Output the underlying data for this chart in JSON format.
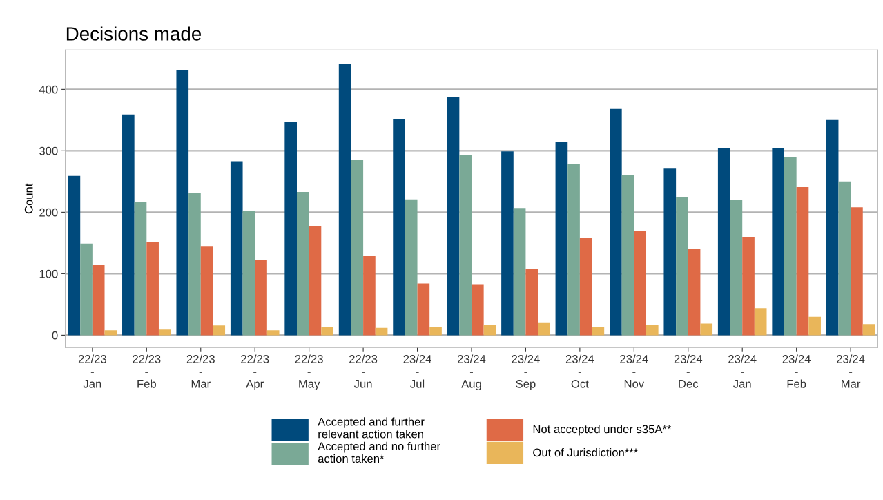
{
  "chart_data": {
    "type": "bar",
    "title": "Decisions made",
    "ylabel": "Count",
    "categories": [
      "22/23\n-\nJan",
      "22/23\n-\nFeb",
      "22/23\n-\nMar",
      "22/23\n-\nApr",
      "22/23\n-\nMay",
      "22/23\n-\nJun",
      "23/24\n-\nJul",
      "23/24\n-\nAug",
      "23/24\n-\nSep",
      "23/24\n-\nOct",
      "23/24\n-\nNov",
      "23/24\n-\nDec",
      "23/24\n-\nJan",
      "23/24\n-\nFeb",
      "23/24\n-\nMar"
    ],
    "series": [
      {
        "name": "Accepted and further\nrelevant action taken",
        "color": "#004a7c",
        "values": [
          259,
          359,
          431,
          283,
          347,
          441,
          352,
          387,
          299,
          315,
          368,
          272,
          305,
          304,
          350
        ]
      },
      {
        "name": "Accepted and no further\naction taken*",
        "color": "#7aa996",
        "values": [
          149,
          217,
          231,
          202,
          233,
          285,
          221,
          293,
          207,
          278,
          260,
          225,
          220,
          290,
          250
        ]
      },
      {
        "name": "Not accepted under s35A**",
        "color": "#df6a46",
        "values": [
          115,
          151,
          145,
          123,
          178,
          129,
          84,
          83,
          108,
          158,
          170,
          141,
          160,
          241,
          208
        ]
      },
      {
        "name": "Out of Jurisdiction***",
        "color": "#e9b65a",
        "values": [
          8,
          9,
          16,
          8,
          13,
          12,
          13,
          17,
          21,
          14,
          17,
          19,
          44,
          30,
          18
        ]
      }
    ],
    "ylim": [
      -20,
      464
    ],
    "yticks": [
      0,
      100,
      200,
      300,
      400
    ],
    "grid": "y",
    "legend": "bottom"
  }
}
